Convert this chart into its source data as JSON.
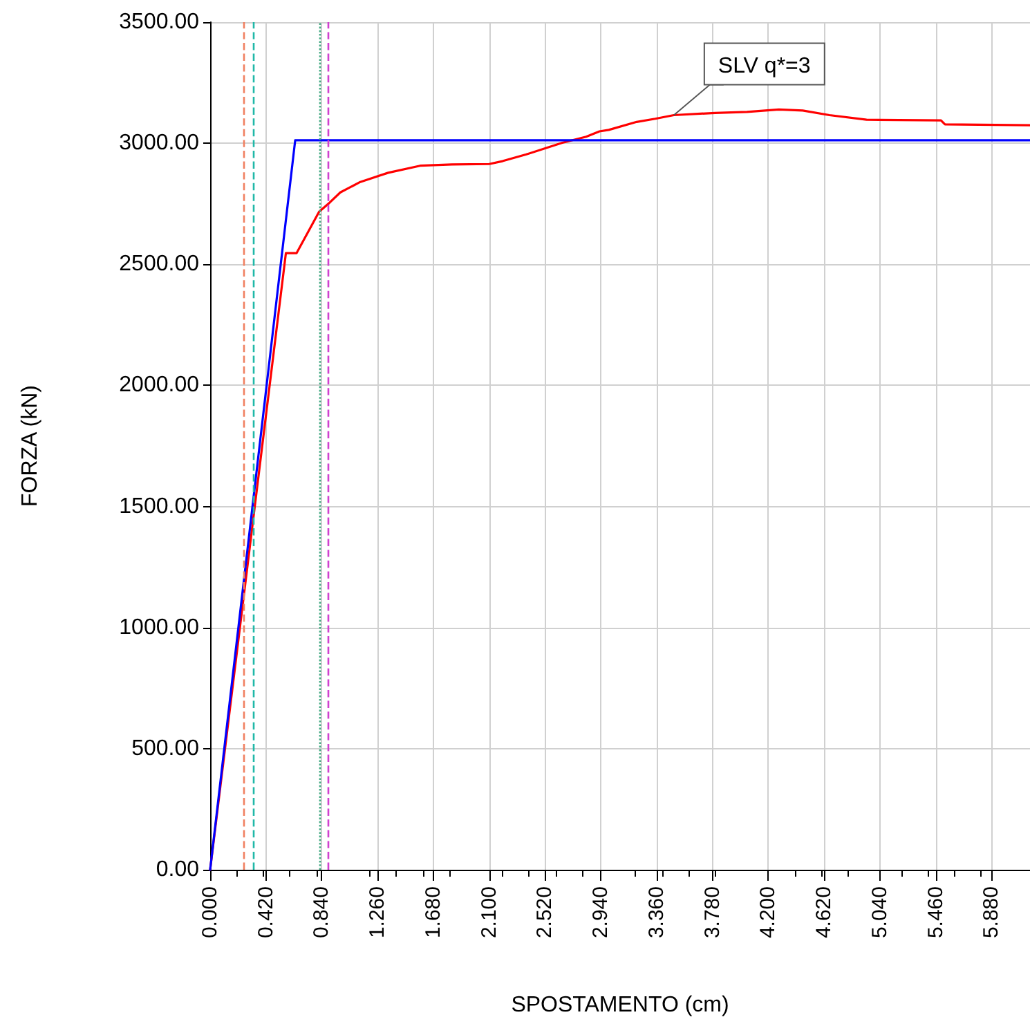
{
  "chart_data": {
    "type": "line",
    "xlabel": "SPOSTAMENTO (cm)",
    "ylabel": "FORZA (kN)",
    "xlim": [
      0,
      6.17
    ],
    "ylim": [
      0,
      3500
    ],
    "xticks": [
      {
        "value": 0,
        "label": "0.000"
      },
      {
        "value": 0.42,
        "label": "0.420"
      },
      {
        "value": 0.84,
        "label": "0.840"
      },
      {
        "value": 1.26,
        "label": "1.260"
      },
      {
        "value": 1.68,
        "label": "1.680"
      },
      {
        "value": 2.1,
        "label": "2.100"
      },
      {
        "value": 2.52,
        "label": "2.520"
      },
      {
        "value": 2.94,
        "label": "2.940"
      },
      {
        "value": 3.36,
        "label": "3.360"
      },
      {
        "value": 3.78,
        "label": "3.780"
      },
      {
        "value": 4.2,
        "label": "4.200"
      },
      {
        "value": 4.62,
        "label": "4.620"
      },
      {
        "value": 5.04,
        "label": "5.040"
      },
      {
        "value": 5.46,
        "label": "5.460"
      },
      {
        "value": 5.88,
        "label": "5.880"
      }
    ],
    "yticks": [
      {
        "value": 0,
        "label": "0.00"
      },
      {
        "value": 500,
        "label": "500.00"
      },
      {
        "value": 1000,
        "label": "1000.00"
      },
      {
        "value": 1500,
        "label": "1500.00"
      },
      {
        "value": 2000,
        "label": "2000.00"
      },
      {
        "value": 2500,
        "label": "2500.00"
      },
      {
        "value": 3000,
        "label": "3000.00"
      },
      {
        "value": 3500,
        "label": "3500.00"
      }
    ],
    "grid": true,
    "marker": "none",
    "line_style": "solid",
    "series": [
      {
        "color": "#ff0000",
        "x": [
          0,
          0.57,
          0.65,
          0.82,
          0.9,
          0.98,
          1.13,
          1.34,
          1.58,
          1.82,
          2.1,
          2.2,
          2.38,
          2.65,
          2.83,
          2.93,
          3.0,
          3.21,
          3.35,
          3.49,
          3.8,
          4.04,
          4.28,
          4.46,
          4.66,
          4.94,
          5.5,
          5.53,
          6.17
        ],
        "values": [
          0,
          2546,
          2546,
          2717,
          2755,
          2797,
          2840,
          2878,
          2907,
          2912,
          2914,
          2926,
          2954,
          3002,
          3027,
          3049,
          3055,
          3088,
          3101,
          3116,
          3125,
          3129,
          3139,
          3135,
          3116,
          3097,
          3094,
          3078,
          3074
        ]
      },
      {
        "color": "#0000ff",
        "x": [
          0,
          0.64,
          6.17
        ],
        "values": [
          0,
          3012,
          3012
        ]
      }
    ],
    "ref_lines": [
      {
        "axis": "x",
        "value": 0.25,
        "color": "#f08060",
        "line_style": "dashed"
      },
      {
        "axis": "x",
        "value": 0.32,
        "color": "#20b8a8",
        "line_style": "dashed"
      },
      {
        "axis": "x",
        "value": 0.82,
        "color": "#40a880",
        "line_style": "dotted"
      },
      {
        "axis": "x",
        "value": 0.89,
        "color": "#d040d0",
        "line_style": "dashed"
      }
    ],
    "annotations": [
      {
        "text": "SLV q*=3",
        "x": 3.49,
        "y": 3116
      }
    ]
  }
}
